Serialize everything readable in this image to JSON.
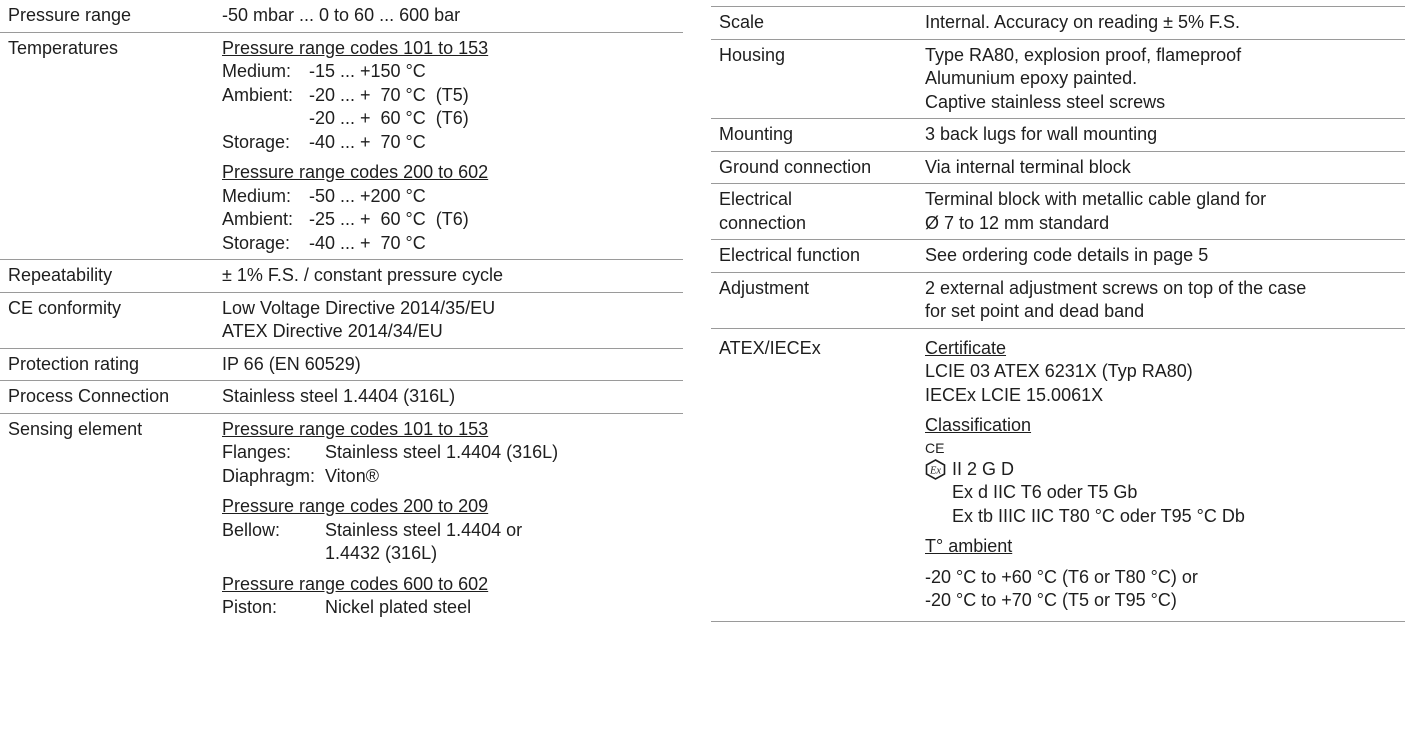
{
  "left": {
    "pressure_range": {
      "label": "Pressure range",
      "value": "-50 mbar ... 0 to 60 ... 600 bar"
    },
    "temperatures": {
      "label": "Temperatures",
      "group1": {
        "heading": "Pressure range codes 101 to 153",
        "medium_k": "Medium:",
        "medium_v": "-15 ... +150 °C",
        "ambient_k": "Ambient:",
        "ambient_v1": "-20 ... +  70 °C  (T5)",
        "ambient_v2": "-20 ... +  60 °C  (T6)",
        "storage_k": "Storage:",
        "storage_v": "-40 ... +  70 °C"
      },
      "group2": {
        "heading": "Pressure range codes 200 to 602",
        "medium_k": "Medium:",
        "medium_v": "-50 ... +200 °C",
        "ambient_k": "Ambient:",
        "ambient_v": "-25 ... +  60 °C  (T6)",
        "storage_k": "Storage:",
        "storage_v": "-40 ... +  70 °C"
      }
    },
    "repeatability": {
      "label": "Repeatability",
      "value": "± 1% F.S. / constant pressure cycle"
    },
    "ce_conformity": {
      "label": "CE conformity",
      "line1": "Low Voltage Directive 2014/35/EU",
      "line2": "ATEX Directive 2014/34/EU"
    },
    "protection_rating": {
      "label": "Protection rating",
      "value": "IP 66 (EN 60529)"
    },
    "process_connection": {
      "label": "Process Connection",
      "value": "Stainless steel 1.4404 (316L)"
    },
    "sensing_element": {
      "label": "Sensing element",
      "group1": {
        "heading": "Pressure range codes 101 to 153",
        "flanges_k": "Flanges:",
        "flanges_v": "Stainless steel 1.4404 (316L)",
        "diaphragm_k": "Diaphragm:",
        "diaphragm_v": "Viton®"
      },
      "group2": {
        "heading": "Pressure range codes 200 to 209",
        "bellow_k": "Bellow:",
        "bellow_v1": "Stainless steel 1.4404 or",
        "bellow_v2": "1.4432 (316L)"
      },
      "group3": {
        "heading": "Pressure range codes 600 to 602",
        "piston_k": "Piston:",
        "piston_v": "Nickel plated steel"
      }
    }
  },
  "right": {
    "scale": {
      "label": "Scale",
      "value": "Internal. Accuracy on reading ± 5% F.S."
    },
    "housing": {
      "label": "Housing",
      "line1": "Type RA80, explosion proof, flameproof",
      "line2": "Alumunium epoxy painted.",
      "line3": "Captive stainless steel screws"
    },
    "mounting": {
      "label": "Mounting",
      "value": "3 back lugs for wall mounting"
    },
    "ground": {
      "label": "Ground connection",
      "value": "Via internal terminal block"
    },
    "electrical_connection": {
      "label1": "Electrical",
      "label2": "connection",
      "line1": "Terminal block with metallic cable gland for",
      "line2": "Ø 7 to 12 mm standard"
    },
    "electrical_function": {
      "label": "Electrical function",
      "value": "See ordering code details in page 5"
    },
    "adjustment": {
      "label": "Adjustment",
      "line1": "2 external adjustment screws on top of the case",
      "line2": "for set point and dead band"
    },
    "atex": {
      "label": "ATEX/IECEx",
      "certificate_heading": "Certificate",
      "cert1": "LCIE 03 ATEX 6231X (Typ RA80)",
      "cert2": "IECEx LCIE 15.0061X",
      "classification_heading": "Classification",
      "ce_mark": "CE",
      "class1": "II 2 G D",
      "class2": "Ex d IIC T6 oder T5 Gb",
      "class3": "Ex tb IIIC IIC T80 °C oder T95 °C Db",
      "ambient_heading": "T° ambient",
      "amb1": "-20 °C to +60 °C (T6 or T80 °C) or",
      "amb2": "-20 °C to +70 °C (T5 or T95 °C)"
    }
  }
}
